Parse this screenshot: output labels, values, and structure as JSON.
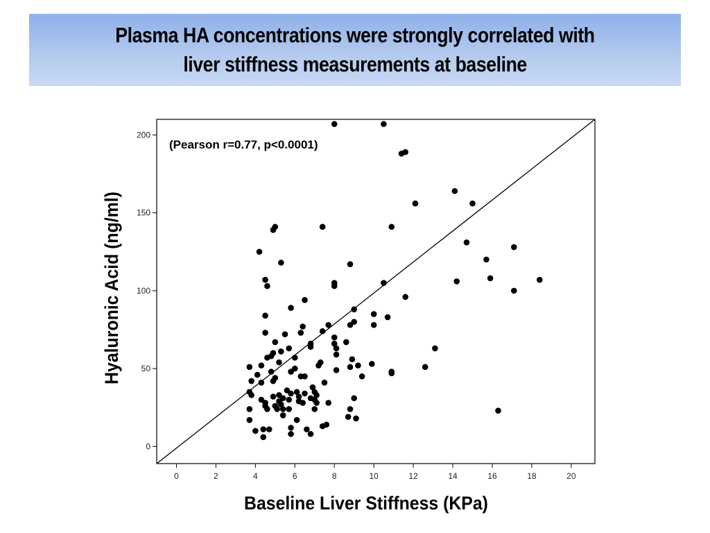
{
  "slide": {
    "title_line1": "Plasma HA concentrations were strongly correlated with",
    "title_line2": "liver stiffness measurements at baseline",
    "banner_color": "#a9c1ee"
  },
  "chart_data": {
    "type": "scatter",
    "xlabel": "Baseline Liver Stiffness (KPa)",
    "ylabel": "Hyaluronic Acid (ng/ml)",
    "annotation": "(Pearson r=0.77, p<0.0001)",
    "xlim": [
      -1,
      21.2
    ],
    "ylim": [
      -11,
      210
    ],
    "x_ticks": [
      0,
      2,
      4,
      6,
      8,
      10,
      12,
      14,
      16,
      18,
      20
    ],
    "y_ticks": [
      0,
      50,
      100,
      150,
      200
    ],
    "grid": false,
    "reference_line": {
      "from": [
        -1,
        -11
      ],
      "to": [
        21.2,
        210
      ]
    },
    "marker_color": "#000000",
    "points": [
      [
        8.0,
        207
      ],
      [
        10.5,
        207
      ],
      [
        11.4,
        188
      ],
      [
        11.6,
        189
      ],
      [
        14.1,
        164
      ],
      [
        12.1,
        156
      ],
      [
        15.0,
        156
      ],
      [
        14.7,
        131
      ],
      [
        4.9,
        139
      ],
      [
        5.0,
        141
      ],
      [
        7.4,
        141
      ],
      [
        10.9,
        141
      ],
      [
        4.2,
        125
      ],
      [
        5.3,
        118
      ],
      [
        8.8,
        117
      ],
      [
        17.1,
        128
      ],
      [
        15.7,
        120
      ],
      [
        15.9,
        108
      ],
      [
        18.4,
        107
      ],
      [
        14.2,
        106
      ],
      [
        17.1,
        100
      ],
      [
        4.5,
        107
      ],
      [
        4.6,
        103
      ],
      [
        8.0,
        105
      ],
      [
        8.0,
        103
      ],
      [
        10.5,
        105
      ],
      [
        11.6,
        96
      ],
      [
        6.5,
        94
      ],
      [
        5.8,
        89
      ],
      [
        9.0,
        88
      ],
      [
        4.5,
        84
      ],
      [
        10.0,
        85
      ],
      [
        10.7,
        83
      ],
      [
        9.0,
        80
      ],
      [
        8.8,
        78
      ],
      [
        10.0,
        78
      ],
      [
        6.4,
        77
      ],
      [
        7.7,
        78
      ],
      [
        4.5,
        73
      ],
      [
        5.5,
        72
      ],
      [
        6.3,
        73
      ],
      [
        7.4,
        74
      ],
      [
        8.0,
        70
      ],
      [
        5.0,
        67
      ],
      [
        6.8,
        66
      ],
      [
        6.8,
        64
      ],
      [
        8.0,
        66
      ],
      [
        5.7,
        63
      ],
      [
        8.1,
        63
      ],
      [
        8.6,
        67
      ],
      [
        5.3,
        61
      ],
      [
        4.9,
        60
      ],
      [
        4.8,
        58
      ],
      [
        8.1,
        59
      ],
      [
        4.6,
        57
      ],
      [
        5.2,
        54
      ],
      [
        6.0,
        57
      ],
      [
        7.3,
        54
      ],
      [
        8.9,
        56
      ],
      [
        3.7,
        51
      ],
      [
        4.3,
        52
      ],
      [
        7.2,
        52
      ],
      [
        8.1,
        49
      ],
      [
        8.8,
        51
      ],
      [
        9.2,
        52
      ],
      [
        9.9,
        53
      ],
      [
        10.9,
        47
      ],
      [
        10.9,
        48
      ],
      [
        12.6,
        51
      ],
      [
        13.1,
        63
      ],
      [
        4.1,
        46
      ],
      [
        4.8,
        48
      ],
      [
        5.8,
        48
      ],
      [
        6.0,
        50
      ],
      [
        6.3,
        45
      ],
      [
        6.5,
        45
      ],
      [
        7.5,
        41
      ],
      [
        9.4,
        45
      ],
      [
        3.8,
        42
      ],
      [
        4.3,
        41
      ],
      [
        4.9,
        42
      ],
      [
        5.0,
        44
      ],
      [
        5.6,
        36
      ],
      [
        5.8,
        34
      ],
      [
        6.1,
        35
      ],
      [
        6.5,
        34
      ],
      [
        6.9,
        38
      ],
      [
        7.0,
        35
      ],
      [
        7.1,
        33
      ],
      [
        3.7,
        35
      ],
      [
        3.8,
        33
      ],
      [
        4.3,
        30
      ],
      [
        4.5,
        28
      ],
      [
        4.9,
        32
      ],
      [
        5.2,
        29
      ],
      [
        5.2,
        33
      ],
      [
        5.4,
        31
      ],
      [
        5.7,
        30
      ],
      [
        6.2,
        29
      ],
      [
        6.4,
        28
      ],
      [
        6.8,
        31
      ],
      [
        7.0,
        30
      ],
      [
        7.1,
        28
      ],
      [
        7.7,
        28
      ],
      [
        9.0,
        31
      ],
      [
        3.7,
        24
      ],
      [
        4.5,
        26
      ],
      [
        4.6,
        24
      ],
      [
        5.0,
        26
      ],
      [
        5.3,
        27
      ],
      [
        5.4,
        24
      ],
      [
        5.7,
        24
      ],
      [
        7.0,
        24
      ],
      [
        8.8,
        24
      ],
      [
        3.7,
        17
      ],
      [
        5.4,
        20
      ],
      [
        6.1,
        17
      ],
      [
        8.7,
        19
      ],
      [
        9.1,
        18
      ],
      [
        4.0,
        10
      ],
      [
        4.4,
        11
      ],
      [
        4.7,
        11
      ],
      [
        5.8,
        12
      ],
      [
        6.6,
        11
      ],
      [
        7.4,
        13
      ],
      [
        7.6,
        14
      ],
      [
        4.4,
        6
      ],
      [
        5.8,
        8
      ],
      [
        6.8,
        8
      ],
      [
        16.3,
        23
      ],
      [
        5.1,
        24
      ],
      [
        6.2,
        32
      ]
    ]
  }
}
